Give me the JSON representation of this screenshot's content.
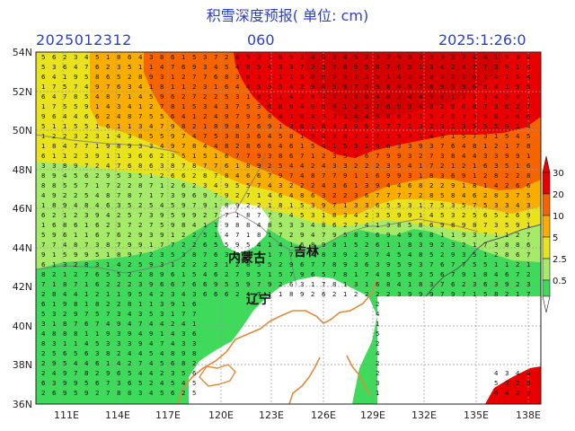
{
  "header": {
    "title": "积雪深度预报( 单位: cm)",
    "run_time": "2025012312",
    "lead_hours": "060",
    "valid_time": "2025:1:26:0"
  },
  "map": {
    "lon_range": [
      109,
      139
    ],
    "lat_range": [
      36,
      54
    ],
    "lat_labels": [
      "54N",
      "52N",
      "50N",
      "48N",
      "46N",
      "44N",
      "42N",
      "40N",
      "38N",
      "36N"
    ],
    "lon_labels": [
      "111E",
      "114E",
      "117E",
      "120E",
      "123E",
      "126E",
      "129E",
      "132E",
      "135E",
      "138E"
    ],
    "region_labels": [
      "内蒙古",
      "吉林",
      "辽宁"
    ]
  },
  "legend": {
    "colorbar_levels": [
      "30",
      "20",
      "10",
      "5",
      "2.5",
      "0.5"
    ],
    "colors": [
      "#e80000",
      "#f46400",
      "#f8ae00",
      "#e8e31e",
      "#a6ea6a",
      "#3fd95c",
      "#ffffff"
    ]
  }
}
